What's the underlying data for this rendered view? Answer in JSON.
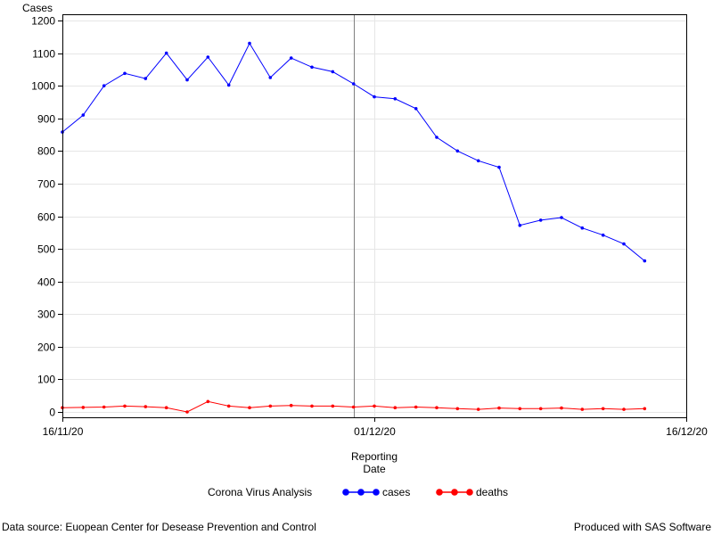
{
  "chart_data": {
    "type": "line",
    "ylabel": "Cases",
    "xlabel_lines": [
      "Reporting",
      "Date"
    ],
    "ylim": [
      0,
      1200
    ],
    "yticks": [
      0,
      100,
      200,
      300,
      400,
      500,
      600,
      700,
      800,
      900,
      1000,
      1100,
      1200
    ],
    "x_start": "2020-11-16",
    "x_end": "2020-12-16",
    "xticks": [
      {
        "date": "2020-11-16",
        "label": "16/11/20"
      },
      {
        "date": "2020-12-01",
        "label": "01/12/20"
      },
      {
        "date": "2020-12-16",
        "label": "16/12/20"
      }
    ],
    "reference_line_date": "2020-11-30",
    "grid": true,
    "legend_title": "Corona Virus Analysis",
    "legend_position": "bottom",
    "dates": [
      "2020-11-16",
      "2020-11-17",
      "2020-11-18",
      "2020-11-19",
      "2020-11-20",
      "2020-11-21",
      "2020-11-22",
      "2020-11-23",
      "2020-11-24",
      "2020-11-25",
      "2020-11-26",
      "2020-11-27",
      "2020-11-28",
      "2020-11-29",
      "2020-11-30",
      "2020-12-01",
      "2020-12-02",
      "2020-12-03",
      "2020-12-04",
      "2020-12-05",
      "2020-12-06",
      "2020-12-07",
      "2020-12-08",
      "2020-12-09",
      "2020-12-10",
      "2020-12-11",
      "2020-12-12",
      "2020-12-13",
      "2020-12-14"
    ],
    "series": [
      {
        "name": "cases",
        "color": "#0000ff",
        "values": [
          858,
          910,
          1000,
          1038,
          1022,
          1100,
          1018,
          1088,
          1002,
          1130,
          1025,
          1085,
          1057,
          1043,
          1006,
          966,
          960,
          930,
          842,
          800,
          770,
          750,
          572,
          588,
          596,
          564,
          542,
          515,
          463
        ]
      },
      {
        "name": "deaths",
        "color": "#ff0000",
        "values": [
          13,
          14,
          15,
          18,
          16,
          13,
          0,
          32,
          18,
          13,
          18,
          20,
          18,
          18,
          15,
          18,
          13,
          15,
          13,
          10,
          8,
          12,
          10,
          10,
          12,
          8,
          10,
          8,
          10
        ]
      }
    ]
  },
  "footer": {
    "source": "Data source: Euopean Center for Desease Prevention and Control",
    "credit": "Produced with SAS Software"
  }
}
